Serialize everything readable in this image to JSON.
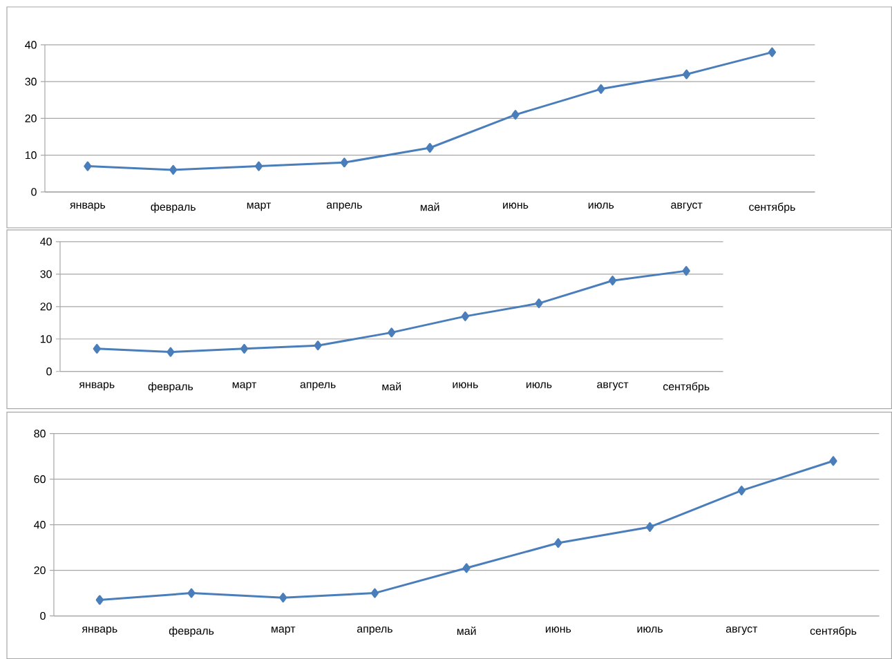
{
  "chart_data": [
    {
      "type": "line",
      "categories": [
        "январь",
        "февраль",
        "март",
        "апрель",
        "май",
        "июнь",
        "июль",
        "август",
        "сентябрь"
      ],
      "values": [
        7,
        6,
        7,
        8,
        12,
        21,
        28,
        32,
        38
      ],
      "color": "#4a7ebb",
      "marker": "diamond",
      "grid": "y",
      "ylim": [
        0,
        40
      ],
      "yticks": [
        0,
        10,
        20,
        30,
        40
      ]
    },
    {
      "type": "line",
      "categories": [
        "январь",
        "февраль",
        "март",
        "апрель",
        "май",
        "июнь",
        "июль",
        "август",
        "сентябрь"
      ],
      "values": [
        7,
        6,
        7,
        8,
        12,
        17,
        21,
        28,
        31
      ],
      "color": "#4a7ebb",
      "marker": "diamond",
      "grid": "y",
      "ylim": [
        0,
        40
      ],
      "yticks": [
        0,
        10,
        20,
        30,
        40
      ]
    },
    {
      "type": "line",
      "categories": [
        "январь",
        "февраль",
        "март",
        "апрель",
        "май",
        "июнь",
        "июль",
        "август",
        "сентябрь"
      ],
      "values": [
        7,
        10,
        8,
        10,
        21,
        32,
        39,
        55,
        68
      ],
      "color": "#4a7ebb",
      "marker": "diamond",
      "grid": "y",
      "ylim": [
        0,
        80
      ],
      "yticks": [
        0,
        20,
        40,
        60,
        80
      ]
    }
  ]
}
